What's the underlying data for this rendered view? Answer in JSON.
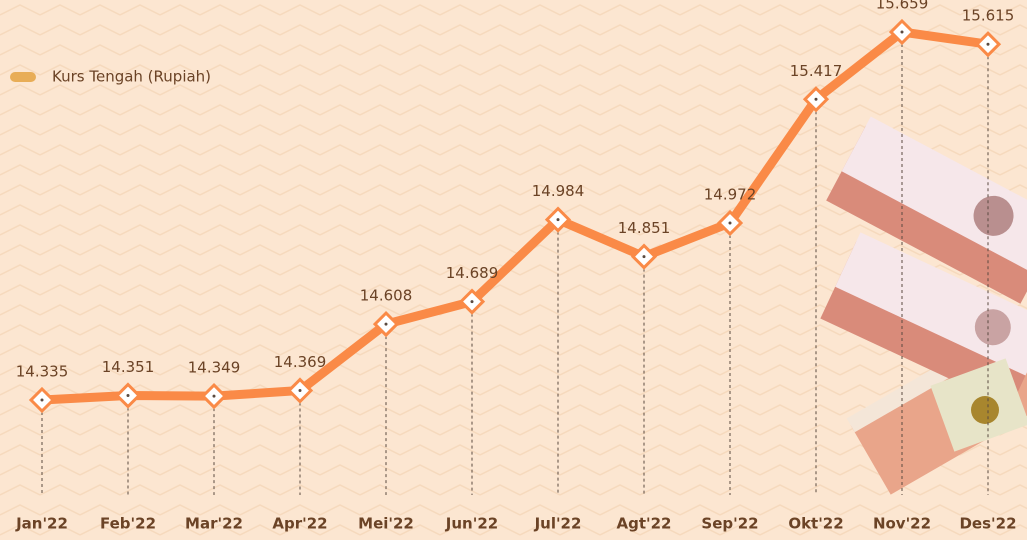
{
  "chart_data": {
    "type": "line",
    "categories": [
      "Jan'22",
      "Feb'22",
      "Mar'22",
      "Apr'22",
      "Mei'22",
      "Jun'22",
      "Jul'22",
      "Agt'22",
      "Sep'22",
      "Okt'22",
      "Nov'22",
      "Des'22"
    ],
    "series": [
      {
        "name": "Kurs Tengah (Rupiah)",
        "color": "#fa8a47",
        "values": [
          14335,
          14351,
          14349,
          14369,
          14608,
          14689,
          14984,
          14851,
          14972,
          15417,
          15659,
          15615
        ],
        "value_labels": [
          "14.335",
          "14.351",
          "14.349",
          "14.369",
          "14.608",
          "14.689",
          "14.984",
          "14.851",
          "14.972",
          "15.417",
          "15.659",
          "15.615"
        ]
      }
    ],
    "legend": "top-left"
  }
}
